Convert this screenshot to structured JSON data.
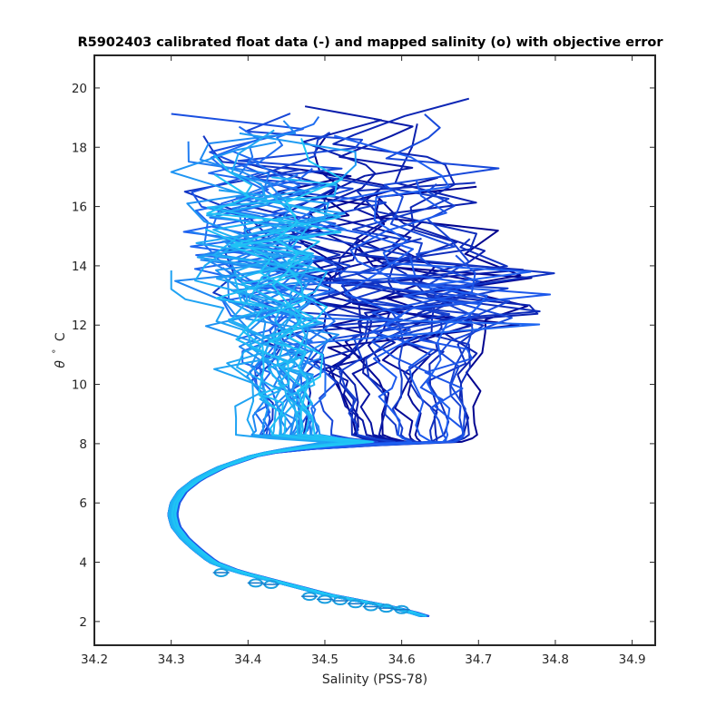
{
  "chart_data": {
    "type": "line",
    "title": "R5902403 calibrated float data (-) and mapped salinity (o) with objective error",
    "xlabel": "Salinity (PSS-78)",
    "ylabel_symbol": "θ",
    "ylabel_degree": "°",
    "ylabel_unit": "C",
    "xlim": [
      34.2,
      34.93
    ],
    "ylim": [
      1.2,
      21.1
    ],
    "xticks": [
      "34.2",
      "34.3",
      "34.4",
      "34.5",
      "34.6",
      "34.7",
      "34.8",
      "34.9"
    ],
    "yticks": [
      "2",
      "4",
      "6",
      "8",
      "10",
      "12",
      "14",
      "16",
      "18",
      "20"
    ],
    "grid": false,
    "legend": "none",
    "color_start": "#00008c",
    "color_mid": "#1f5ef0",
    "color_end": "#1fc7f5",
    "deep_curve": {
      "theta": [
        8.0,
        7.6,
        7.2,
        6.8,
        6.4,
        6.0,
        5.6,
        5.2,
        4.8,
        4.4,
        4.0,
        3.7,
        3.5,
        3.2,
        2.9,
        2.7,
        2.5,
        2.3,
        2.1
      ],
      "salinity": [
        34.465,
        34.41,
        34.365,
        34.335,
        34.315,
        34.305,
        34.302,
        34.306,
        34.318,
        34.335,
        34.355,
        34.385,
        34.415,
        34.46,
        34.505,
        34.545,
        34.585,
        34.615,
        34.64
      ]
    },
    "mapped_points": [
      {
        "salinity": 34.365,
        "theta": 3.65
      },
      {
        "salinity": 34.41,
        "theta": 3.3
      },
      {
        "salinity": 34.43,
        "theta": 3.25
      },
      {
        "salinity": 34.48,
        "theta": 2.85
      },
      {
        "salinity": 34.5,
        "theta": 2.75
      },
      {
        "salinity": 34.52,
        "theta": 2.7
      },
      {
        "salinity": 34.54,
        "theta": 2.6
      },
      {
        "salinity": 34.56,
        "theta": 2.5
      },
      {
        "salinity": 34.58,
        "theta": 2.45
      },
      {
        "salinity": 34.6,
        "theta": 2.4
      }
    ],
    "profile_count": 60,
    "upper_envelope_salinity_range": [
      34.3,
      34.84
    ],
    "upper_envelope_theta_range": [
      8.0,
      20.1
    ]
  }
}
